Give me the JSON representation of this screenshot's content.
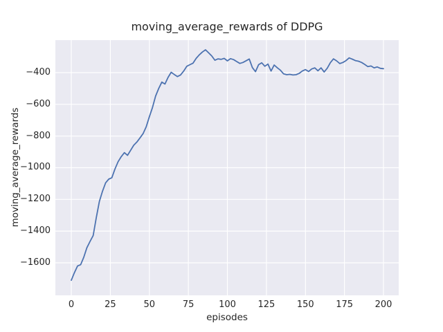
{
  "figure": {
    "title": "moving_average_rewards of DDPG"
  },
  "chart_data": {
    "type": "line",
    "title": "moving_average_rewards of DDPG",
    "xlabel": "episodes",
    "ylabel": "moving_average_rewards",
    "x_ticks": [
      0,
      25,
      50,
      75,
      100,
      125,
      150,
      175,
      200
    ],
    "y_ticks": [
      -400,
      -600,
      -800,
      -1000,
      -1200,
      -1400,
      -1600
    ],
    "xlim": [
      -10.2,
      210.2
    ],
    "ylim": [
      -1805,
      -195
    ],
    "grid": true,
    "legend_position": "none",
    "background_color": "#EAEAF2",
    "grid_color": "#FFFFFF",
    "line_color": "#4C72B0",
    "text_color": "#262626",
    "series": [
      {
        "name": "moving_average_rewards",
        "x": [
          0,
          2,
          4,
          6,
          8,
          10,
          12,
          14,
          16,
          18,
          20,
          22,
          24,
          26,
          28,
          30,
          32,
          34,
          36,
          38,
          40,
          42,
          44,
          46,
          48,
          50,
          52,
          54,
          56,
          58,
          60,
          62,
          64,
          66,
          68,
          70,
          72,
          74,
          76,
          78,
          80,
          82,
          84,
          86,
          88,
          90,
          92,
          94,
          96,
          98,
          100,
          102,
          104,
          106,
          108,
          110,
          112,
          114,
          116,
          118,
          120,
          122,
          124,
          126,
          128,
          130,
          132,
          134,
          136,
          138,
          140,
          142,
          144,
          146,
          148,
          150,
          152,
          154,
          156,
          158,
          160,
          162,
          164,
          166,
          168,
          170,
          172,
          174,
          176,
          178,
          180,
          182,
          184,
          186,
          188,
          190,
          192,
          194,
          196,
          198,
          200
        ],
        "y": [
          -1710,
          -1662,
          -1620,
          -1612,
          -1565,
          -1505,
          -1465,
          -1428,
          -1315,
          -1212,
          -1148,
          -1095,
          -1072,
          -1063,
          -1008,
          -962,
          -930,
          -905,
          -922,
          -890,
          -858,
          -838,
          -812,
          -785,
          -742,
          -678,
          -620,
          -548,
          -500,
          -460,
          -472,
          -430,
          -398,
          -412,
          -425,
          -415,
          -390,
          -360,
          -350,
          -340,
          -310,
          -288,
          -270,
          -256,
          -275,
          -295,
          -322,
          -313,
          -316,
          -310,
          -326,
          -312,
          -318,
          -330,
          -342,
          -336,
          -325,
          -314,
          -368,
          -394,
          -350,
          -338,
          -360,
          -346,
          -390,
          -352,
          -370,
          -385,
          -408,
          -413,
          -411,
          -415,
          -413,
          -405,
          -390,
          -381,
          -393,
          -377,
          -370,
          -388,
          -370,
          -396,
          -372,
          -337,
          -313,
          -326,
          -343,
          -336,
          -324,
          -307,
          -315,
          -324,
          -328,
          -336,
          -348,
          -362,
          -358,
          -370,
          -364,
          -373,
          -375
        ]
      }
    ]
  }
}
